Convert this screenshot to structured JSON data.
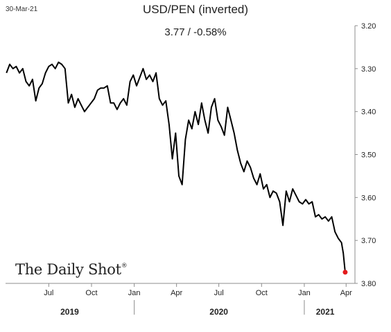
{
  "header": {
    "date": "30-Mar-21",
    "title": "USD/PEN (inverted)",
    "subtitle": "3.77  /  -0.58%"
  },
  "logo": {
    "text": "The Daily Shot",
    "mark": "®"
  },
  "colors": {
    "line": "#000000",
    "endpoint": "#e31a1c",
    "axis": "#8c8c8c"
  },
  "chart_data": {
    "type": "line",
    "title": "USD/PEN (inverted)",
    "y_inverted": true,
    "y_axis_position": "right",
    "ylim": [
      3.2,
      3.8
    ],
    "yticks": [
      3.2,
      3.3,
      3.4,
      3.5,
      3.6,
      3.7,
      3.8
    ],
    "ytick_labels": [
      "3.20",
      "3.30",
      "3.40",
      "3.50",
      "3.60",
      "3.70",
      "3.80"
    ],
    "xlim": [
      "2019-03-30",
      "2021-04-20"
    ],
    "xticks": [
      {
        "date": "2019-07-01",
        "label": "Jul"
      },
      {
        "date": "2019-10-01",
        "label": "Oct"
      },
      {
        "date": "2020-01-01",
        "label": "Jan"
      },
      {
        "date": "2020-04-01",
        "label": "Apr"
      },
      {
        "date": "2020-07-01",
        "label": "Jul"
      },
      {
        "date": "2020-10-01",
        "label": "Oct"
      },
      {
        "date": "2021-01-01",
        "label": "Jan"
      },
      {
        "date": "2021-04-01",
        "label": "Apr"
      }
    ],
    "year_labels": [
      {
        "year": "2019",
        "center": "2019-08-15"
      },
      {
        "year": "2020",
        "center": "2020-07-01"
      },
      {
        "year": "2021",
        "center": "2021-02-15"
      }
    ],
    "year_separators": [
      "2020-01-01",
      "2021-01-01"
    ],
    "series": [
      {
        "points": [
          [
            "2019-04-01",
            3.31
          ],
          [
            "2019-04-08",
            3.29
          ],
          [
            "2019-04-15",
            3.3
          ],
          [
            "2019-04-22",
            3.295
          ],
          [
            "2019-04-29",
            3.31
          ],
          [
            "2019-05-06",
            3.3
          ],
          [
            "2019-05-13",
            3.33
          ],
          [
            "2019-05-20",
            3.34
          ],
          [
            "2019-05-27",
            3.325
          ],
          [
            "2019-06-03",
            3.375
          ],
          [
            "2019-06-10",
            3.345
          ],
          [
            "2019-06-17",
            3.335
          ],
          [
            "2019-06-24",
            3.31
          ],
          [
            "2019-07-01",
            3.295
          ],
          [
            "2019-07-08",
            3.29
          ],
          [
            "2019-07-15",
            3.3
          ],
          [
            "2019-07-22",
            3.285
          ],
          [
            "2019-07-29",
            3.29
          ],
          [
            "2019-08-05",
            3.3
          ],
          [
            "2019-08-12",
            3.38
          ],
          [
            "2019-08-19",
            3.36
          ],
          [
            "2019-08-26",
            3.39
          ],
          [
            "2019-09-02",
            3.37
          ],
          [
            "2019-09-09",
            3.385
          ],
          [
            "2019-09-16",
            3.4
          ],
          [
            "2019-09-23",
            3.39
          ],
          [
            "2019-09-30",
            3.38
          ],
          [
            "2019-10-07",
            3.37
          ],
          [
            "2019-10-14",
            3.35
          ],
          [
            "2019-10-21",
            3.345
          ],
          [
            "2019-10-28",
            3.345
          ],
          [
            "2019-11-04",
            3.34
          ],
          [
            "2019-11-11",
            3.38
          ],
          [
            "2019-11-18",
            3.38
          ],
          [
            "2019-11-25",
            3.395
          ],
          [
            "2019-12-02",
            3.38
          ],
          [
            "2019-12-09",
            3.37
          ],
          [
            "2019-12-16",
            3.385
          ],
          [
            "2019-12-23",
            3.33
          ],
          [
            "2019-12-30",
            3.315
          ],
          [
            "2020-01-06",
            3.34
          ],
          [
            "2020-01-13",
            3.32
          ],
          [
            "2020-01-20",
            3.3
          ],
          [
            "2020-01-27",
            3.325
          ],
          [
            "2020-02-03",
            3.315
          ],
          [
            "2020-02-10",
            3.33
          ],
          [
            "2020-02-17",
            3.31
          ],
          [
            "2020-02-24",
            3.37
          ],
          [
            "2020-03-02",
            3.385
          ],
          [
            "2020-03-09",
            3.375
          ],
          [
            "2020-03-16",
            3.43
          ],
          [
            "2020-03-23",
            3.51
          ],
          [
            "2020-03-30",
            3.45
          ],
          [
            "2020-04-06",
            3.55
          ],
          [
            "2020-04-13",
            3.57
          ],
          [
            "2020-04-20",
            3.465
          ],
          [
            "2020-04-27",
            3.42
          ],
          [
            "2020-05-04",
            3.44
          ],
          [
            "2020-05-11",
            3.4
          ],
          [
            "2020-05-18",
            3.43
          ],
          [
            "2020-05-25",
            3.38
          ],
          [
            "2020-06-01",
            3.42
          ],
          [
            "2020-06-08",
            3.45
          ],
          [
            "2020-06-15",
            3.39
          ],
          [
            "2020-06-22",
            3.37
          ],
          [
            "2020-06-29",
            3.42
          ],
          [
            "2020-07-06",
            3.435
          ],
          [
            "2020-07-13",
            3.455
          ],
          [
            "2020-07-20",
            3.39
          ],
          [
            "2020-07-27",
            3.42
          ],
          [
            "2020-08-03",
            3.45
          ],
          [
            "2020-08-10",
            3.49
          ],
          [
            "2020-08-17",
            3.52
          ],
          [
            "2020-08-24",
            3.54
          ],
          [
            "2020-08-31",
            3.515
          ],
          [
            "2020-09-07",
            3.53
          ],
          [
            "2020-09-14",
            3.555
          ],
          [
            "2020-09-21",
            3.57
          ],
          [
            "2020-09-28",
            3.545
          ],
          [
            "2020-10-05",
            3.58
          ],
          [
            "2020-10-12",
            3.57
          ],
          [
            "2020-10-19",
            3.6
          ],
          [
            "2020-10-26",
            3.585
          ],
          [
            "2020-11-02",
            3.59
          ],
          [
            "2020-11-09",
            3.61
          ],
          [
            "2020-11-16",
            3.665
          ],
          [
            "2020-11-23",
            3.585
          ],
          [
            "2020-11-30",
            3.61
          ],
          [
            "2020-12-07",
            3.58
          ],
          [
            "2020-12-14",
            3.595
          ],
          [
            "2020-12-21",
            3.61
          ],
          [
            "2020-12-28",
            3.615
          ],
          [
            "2021-01-04",
            3.605
          ],
          [
            "2021-01-11",
            3.615
          ],
          [
            "2021-01-18",
            3.61
          ],
          [
            "2021-01-25",
            3.645
          ],
          [
            "2021-02-01",
            3.64
          ],
          [
            "2021-02-08",
            3.65
          ],
          [
            "2021-02-15",
            3.645
          ],
          [
            "2021-02-22",
            3.655
          ],
          [
            "2021-03-01",
            3.645
          ],
          [
            "2021-03-08",
            3.68
          ],
          [
            "2021-03-15",
            3.695
          ],
          [
            "2021-03-22",
            3.705
          ],
          [
            "2021-03-26",
            3.73
          ],
          [
            "2021-03-30",
            3.774
          ]
        ]
      }
    ],
    "last_value": 3.77,
    "last_change": "-0.58%"
  }
}
